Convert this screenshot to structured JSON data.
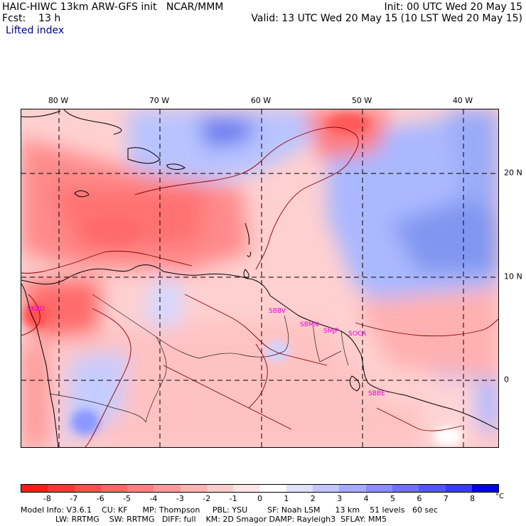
{
  "header": {
    "title": "HAIC-HIWC 13km ARW-GFS init   NCAR/MMM",
    "init": "Init: 00 UTC Wed 20 May 15",
    "fcst": "Fcst:    13 h",
    "valid": "Valid: 13 UTC Wed 20 May 15 (10 LST Wed 20 May 15)",
    "variable": "Lifted index"
  },
  "longitude_labels": [
    "80 W",
    "70 W",
    "60 W",
    "50 W",
    "40 W"
  ],
  "latitude_labels": [
    "20 N",
    "10 N",
    "0"
  ],
  "stations": [
    "SKBO",
    "SBBV",
    "SBMN",
    "SMJP",
    "SOCA",
    "SBBE"
  ],
  "colorbar": {
    "labels": [
      "-8",
      "-7",
      "-6",
      "-5",
      "-4",
      "-3",
      "-2",
      "-1",
      "0",
      "1",
      "2",
      "3",
      "4",
      "5",
      "6",
      "7",
      "8"
    ],
    "unit": "°C",
    "colors": [
      "#ff1a1a",
      "#ff3333",
      "#ff4d4d",
      "#ff6666",
      "#ff8080",
      "#ff9999",
      "#ffb3b3",
      "#ffcccc",
      "#ffe6e6",
      "#ffffff",
      "#e0e0ff",
      "#c4c4ff",
      "#a8a8ff",
      "#8c8cff",
      "#7070ff",
      "#5454ff",
      "#3838ff",
      "#0000f0"
    ]
  },
  "footer": {
    "line1": "Model Info: V3.6.1    CU: KF      MP: Thompson     PBL: YSU        SF: Noah LSM      13 km    51 levels   60 sec",
    "line2": "              LW: RRTMG    SW: RRTMG   DIFF: full    KM: 2D Smagor DAMP: Rayleigh3  SFLAY: MM5"
  }
}
